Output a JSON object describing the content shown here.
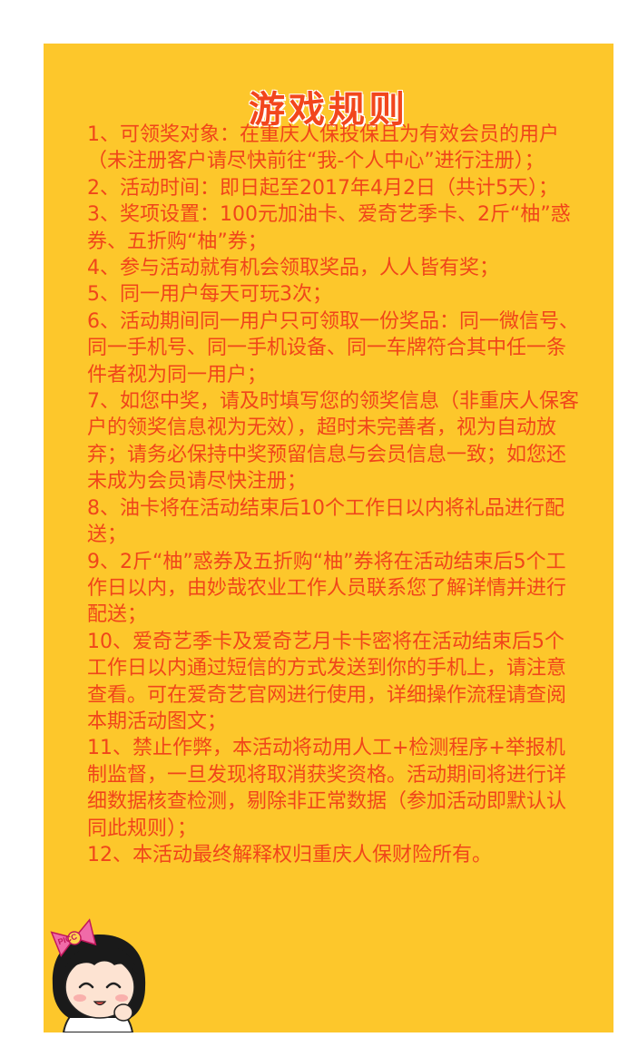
{
  "page": {
    "title": "游戏规则"
  },
  "rules": [
    "1、可领奖对象：在重庆人保投保且为有效会员的用户（未注册客户请尽快前往“我-个人中心”进行注册）；",
    "2、活动时间：即日起至2017年4月2日（共计5天）；",
    "3、奖项设置：100元加油卡、爱奇艺季卡、2斤“柚”惑券、五折购“柚”券；",
    "4、参与活动就有机会领取奖品，人人皆有奖；",
    "5、同一用户每天可玩3次；",
    "6、活动期间同一用户只可领取一份奖品：同一微信号、同一手机号、同一手机设备、同一车牌符合其中任一条件者视为同一用户；",
    "7、如您中奖，请及时填写您的领奖信息（非重庆人保客户的领奖信息视为无效），超时未完善者，视为自动放弃；请务必保持中奖预留信息与会员信息一致；如您还未成为会员请尽快注册；",
    "8、油卡将在活动结束后10个工作日以内将礼品进行配送；",
    "9、2斤“柚”惑券及五折购“柚”券将在活动结束后5个工作日以内，由妙哉农业工作人员联系您了解详情并进行配送；",
    "10、爱奇艺季卡及爱奇艺月卡卡密将在活动结束后5个工作日以内通过短信的方式发送到你的手机上，请注意查看。可在爱奇艺官网进行使用，详细操作流程请查阅本期活动图文；",
    "11、禁止作弊，本活动将动用人工+检测程序+举报机制监督，一旦发现将取消获奖资格。活动期间将进行详细数据核查检测，剔除非正常数据（参加活动即默认认同此规则）；",
    "12、本活动最终解释权归重庆人保财险所有。"
  ],
  "mascot": {
    "icon": "girl-mascot-icon",
    "bow_text": "PICC"
  },
  "colors": {
    "background": "#fdc72b",
    "text": "#f0451a",
    "border": "#ffffff"
  }
}
